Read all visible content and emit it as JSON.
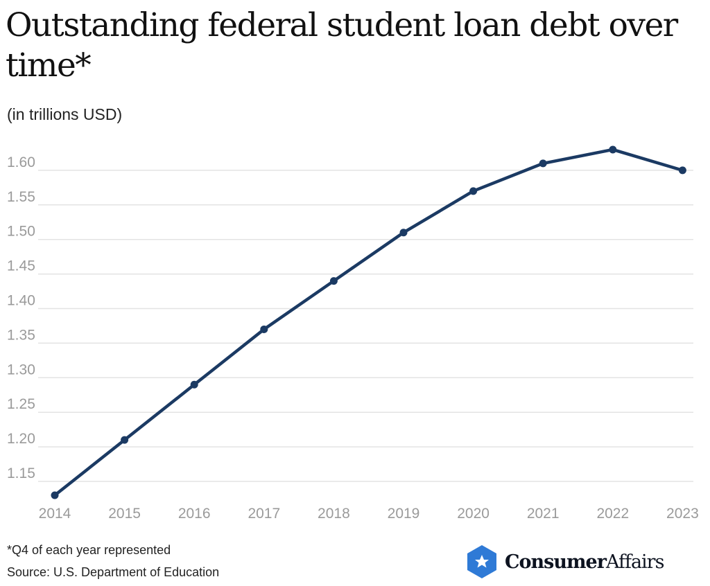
{
  "title": "Outstanding federal student loan debt over time*",
  "subtitle": "(in trillions USD)",
  "footnote": "*Q4 of each year represented",
  "source": "Source: U.S. Department of Education",
  "logo": {
    "bold": "Consumer",
    "regular": "Affairs",
    "icon": "star-hexagon-icon",
    "color": "#2f7ad6"
  },
  "colors": {
    "line": "#1b3a63",
    "grid": "#e3e3e3"
  },
  "chart_data": {
    "type": "line",
    "title": "Outstanding federal student loan debt over time*",
    "subtitle": "(in trillions USD)",
    "x": [
      "2014",
      "2015",
      "2016",
      "2017",
      "2018",
      "2019",
      "2020",
      "2021",
      "2022",
      "2023"
    ],
    "series": [
      {
        "values": [
          1.13,
          1.21,
          1.29,
          1.37,
          1.44,
          1.51,
          1.57,
          1.61,
          1.63,
          1.6
        ]
      }
    ],
    "yticks": [
      "1.15",
      "1.20",
      "1.25",
      "1.30",
      "1.35",
      "1.40",
      "1.45",
      "1.50",
      "1.55",
      "1.60"
    ],
    "ylim": [
      1.13,
      1.64
    ],
    "grid": "horizontal",
    "markers": true
  }
}
